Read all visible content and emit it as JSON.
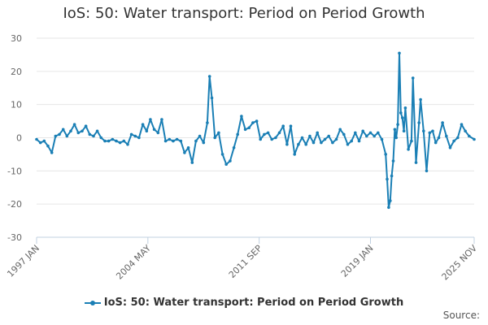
{
  "chart_data": {
    "type": "line",
    "title": "IoS: 50: Water transport: Period on Period Growth",
    "xlabel": "",
    "ylabel": "",
    "ylim": [
      -30,
      30
    ],
    "yticks": [
      "30",
      "20",
      "10",
      "0",
      "-10",
      "-20",
      "-30"
    ],
    "xlim": [
      1997.0,
      2025.833
    ],
    "xticks": [
      {
        "label": "1997 JAN",
        "value": 1997.0
      },
      {
        "label": "2004 MAY",
        "value": 2004.333
      },
      {
        "label": "2011 SEP",
        "value": 2011.667
      },
      {
        "label": "2019 JAN",
        "value": 2019.0
      },
      {
        "label": "2025 NOV",
        "value": 2025.833
      }
    ],
    "grid": true,
    "legend_position": "bottom",
    "series": [
      {
        "name": "IoS: 50: Water transport: Period on Period Growth",
        "color": "#1a7fb5",
        "points": [
          [
            1997.0,
            -0.5
          ],
          [
            1997.25,
            -1.5
          ],
          [
            1997.5,
            -1.0
          ],
          [
            1997.75,
            -2.5
          ],
          [
            1998.0,
            -4.5
          ],
          [
            1998.25,
            0.5
          ],
          [
            1998.5,
            1.0
          ],
          [
            1998.75,
            2.5
          ],
          [
            1999.0,
            0.5
          ],
          [
            1999.25,
            2.0
          ],
          [
            1999.5,
            4.0
          ],
          [
            1999.75,
            1.5
          ],
          [
            2000.0,
            2.0
          ],
          [
            2000.25,
            3.5
          ],
          [
            2000.5,
            1.0
          ],
          [
            2000.75,
            0.5
          ],
          [
            2001.0,
            2.0
          ],
          [
            2001.25,
            0.0
          ],
          [
            2001.5,
            -1.0
          ],
          [
            2001.75,
            -1.0
          ],
          [
            2002.0,
            -0.5
          ],
          [
            2002.25,
            -1.0
          ],
          [
            2002.5,
            -1.5
          ],
          [
            2002.75,
            -1.0
          ],
          [
            2003.0,
            -2.0
          ],
          [
            2003.25,
            1.0
          ],
          [
            2003.5,
            0.5
          ],
          [
            2003.75,
            0.0
          ],
          [
            2004.0,
            4.0
          ],
          [
            2004.25,
            2.0
          ],
          [
            2004.5,
            5.5
          ],
          [
            2004.75,
            2.5
          ],
          [
            2005.0,
            1.5
          ],
          [
            2005.25,
            5.5
          ],
          [
            2005.5,
            -1.0
          ],
          [
            2005.75,
            -0.5
          ],
          [
            2006.0,
            -1.0
          ],
          [
            2006.25,
            -0.5
          ],
          [
            2006.5,
            -1.0
          ],
          [
            2006.75,
            -4.5
          ],
          [
            2007.0,
            -3.0
          ],
          [
            2007.25,
            -7.5
          ],
          [
            2007.5,
            -1.0
          ],
          [
            2007.75,
            0.5
          ],
          [
            2008.0,
            -1.5
          ],
          [
            2008.25,
            4.5
          ],
          [
            2008.4,
            18.5
          ],
          [
            2008.55,
            12.0
          ],
          [
            2008.75,
            0.0
          ],
          [
            2009.0,
            1.5
          ],
          [
            2009.25,
            -5.0
          ],
          [
            2009.5,
            -8.0
          ],
          [
            2009.75,
            -7.0
          ],
          [
            2010.0,
            -3.0
          ],
          [
            2010.25,
            1.0
          ],
          [
            2010.5,
            6.5
          ],
          [
            2010.75,
            2.5
          ],
          [
            2011.0,
            3.0
          ],
          [
            2011.25,
            4.5
          ],
          [
            2011.5,
            5.0
          ],
          [
            2011.75,
            -0.5
          ],
          [
            2012.0,
            1.0
          ],
          [
            2012.25,
            1.5
          ],
          [
            2012.5,
            -0.5
          ],
          [
            2012.75,
            0.0
          ],
          [
            2013.0,
            1.5
          ],
          [
            2013.25,
            3.5
          ],
          [
            2013.5,
            -2.0
          ],
          [
            2013.75,
            3.5
          ],
          [
            2014.0,
            -5.0
          ],
          [
            2014.25,
            -2.0
          ],
          [
            2014.5,
            0.0
          ],
          [
            2014.75,
            -2.0
          ],
          [
            2015.0,
            0.5
          ],
          [
            2015.25,
            -1.5
          ],
          [
            2015.5,
            1.5
          ],
          [
            2015.75,
            -1.5
          ],
          [
            2016.0,
            -0.5
          ],
          [
            2016.25,
            0.5
          ],
          [
            2016.5,
            -1.5
          ],
          [
            2016.75,
            -0.5
          ],
          [
            2017.0,
            2.5
          ],
          [
            2017.25,
            1.0
          ],
          [
            2017.5,
            -2.0
          ],
          [
            2017.75,
            -1.0
          ],
          [
            2018.0,
            1.5
          ],
          [
            2018.25,
            -1.0
          ],
          [
            2018.5,
            2.0
          ],
          [
            2018.75,
            0.5
          ],
          [
            2019.0,
            1.5
          ],
          [
            2019.25,
            0.5
          ],
          [
            2019.5,
            1.5
          ],
          [
            2019.75,
            -0.5
          ],
          [
            2020.0,
            -5.0
          ],
          [
            2020.1,
            -12.5
          ],
          [
            2020.2,
            -21.0
          ],
          [
            2020.3,
            -19.0
          ],
          [
            2020.4,
            -11.5
          ],
          [
            2020.5,
            -7.0
          ],
          [
            2020.6,
            2.5
          ],
          [
            2020.7,
            0.0
          ],
          [
            2020.8,
            4.0
          ],
          [
            2020.9,
            25.5
          ],
          [
            2021.0,
            7.5
          ],
          [
            2021.1,
            6.0
          ],
          [
            2021.2,
            2.0
          ],
          [
            2021.3,
            9.0
          ],
          [
            2021.5,
            -3.5
          ],
          [
            2021.7,
            -1.0
          ],
          [
            2021.8,
            18.0
          ],
          [
            2022.0,
            -7.5
          ],
          [
            2022.2,
            4.5
          ],
          [
            2022.3,
            11.5
          ],
          [
            2022.5,
            2.0
          ],
          [
            2022.7,
            -10.0
          ],
          [
            2022.9,
            1.5
          ],
          [
            2023.1,
            2.0
          ],
          [
            2023.3,
            -1.5
          ],
          [
            2023.5,
            0.0
          ],
          [
            2023.75,
            4.5
          ],
          [
            2024.0,
            0.5
          ],
          [
            2024.25,
            -3.0
          ],
          [
            2024.5,
            -1.0
          ],
          [
            2024.75,
            0.0
          ],
          [
            2025.0,
            4.0
          ],
          [
            2025.25,
            2.0
          ],
          [
            2025.5,
            0.5
          ],
          [
            2025.833,
            -0.5
          ]
        ]
      }
    ]
  },
  "source": "Source:"
}
